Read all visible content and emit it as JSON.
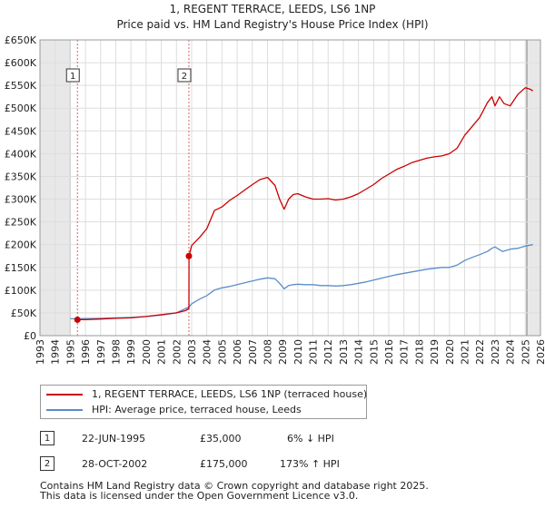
{
  "title_line1": "1, REGENT TERRACE, LEEDS, LS6 1NP",
  "title_line2": "Price paid vs. HM Land Registry's House Price Index (HPI)",
  "chart_data": {
    "type": "line",
    "title": "1, REGENT TERRACE, LEEDS, LS6 1NP — Price paid vs. HM Land Registry's House Price Index (HPI)",
    "xlabel": "",
    "ylabel": "",
    "xlim": [
      1993,
      2026
    ],
    "ylim": [
      0,
      650000
    ],
    "x_ticks": [
      1993,
      1994,
      1995,
      1996,
      1997,
      1998,
      1999,
      2000,
      2001,
      2002,
      2003,
      2004,
      2005,
      2006,
      2007,
      2008,
      2009,
      2010,
      2011,
      2012,
      2013,
      2014,
      2015,
      2016,
      2017,
      2018,
      2019,
      2020,
      2021,
      2022,
      2023,
      2024,
      2025,
      2026
    ],
    "y_ticks": [
      0,
      50000,
      100000,
      150000,
      200000,
      250000,
      300000,
      350000,
      400000,
      450000,
      500000,
      550000,
      600000,
      650000
    ],
    "y_tick_labels": [
      "£0",
      "£50K",
      "£100K",
      "£150K",
      "£200K",
      "£250K",
      "£300K",
      "£350K",
      "£400K",
      "£450K",
      "£500K",
      "£550K",
      "£600K",
      "£650K"
    ],
    "grid": true,
    "shaded_ranges": [
      [
        1993,
        1995.0
      ],
      [
        2025.1,
        2026
      ]
    ],
    "series": [
      {
        "name": "1, REGENT TERRACE, LEEDS, LS6 1NP (terraced house)",
        "color": "#cc0000",
        "x": [
          1995.47,
          1996,
          1997,
          1998,
          1999,
          2000,
          2001,
          2002,
          2002.6,
          2002.82,
          2002.83,
          2003,
          2003.5,
          2004,
          2004.5,
          2005,
          2005.5,
          2006,
          2006.5,
          2007,
          2007.5,
          2008,
          2008.5,
          2008.8,
          2009.1,
          2009.4,
          2009.7,
          2010,
          2010.5,
          2011,
          2011.5,
          2012,
          2012.5,
          2013,
          2013.5,
          2014,
          2014.5,
          2015,
          2015.5,
          2016,
          2016.5,
          2017,
          2017.5,
          2018,
          2018.5,
          2019,
          2019.5,
          2020,
          2020.5,
          2021,
          2021.5,
          2022,
          2022.5,
          2022.8,
          2023,
          2023.3,
          2023.6,
          2024,
          2024.5,
          2025,
          2025.3,
          2025.5
        ],
        "values": [
          35000,
          35000,
          36500,
          38000,
          39000,
          42000,
          46000,
          50000,
          55000,
          60000,
          175000,
          198000,
          215000,
          235000,
          275000,
          283000,
          297000,
          308000,
          320000,
          332000,
          343000,
          348000,
          330000,
          300000,
          278000,
          300000,
          310000,
          312000,
          305000,
          300000,
          300000,
          301000,
          298000,
          300000,
          305000,
          312000,
          322000,
          332000,
          345000,
          355000,
          365000,
          372000,
          380000,
          385000,
          390000,
          393000,
          395000,
          400000,
          412000,
          440000,
          460000,
          480000,
          512000,
          525000,
          505000,
          525000,
          510000,
          505000,
          530000,
          545000,
          542000,
          538000
        ]
      },
      {
        "name": "HPI: Average price, terraced house, Leeds",
        "color": "#5b8dc9",
        "x": [
          1995,
          1996,
          1997,
          1998,
          1999,
          2000,
          2001,
          2002,
          2002.83,
          2003,
          2003.5,
          2004,
          2004.5,
          2005,
          2005.5,
          2006,
          2006.5,
          2007,
          2007.5,
          2008,
          2008.5,
          2008.8,
          2009.1,
          2009.4,
          2009.7,
          2010,
          2010.5,
          2011,
          2011.5,
          2012,
          2012.5,
          2013,
          2013.5,
          2014,
          2014.5,
          2015,
          2015.5,
          2016,
          2016.5,
          2017,
          2017.5,
          2018,
          2018.5,
          2019,
          2019.5,
          2020,
          2020.5,
          2021,
          2021.5,
          2022,
          2022.5,
          2022.8,
          2023,
          2023.5,
          2024,
          2024.5,
          2025,
          2025.5
        ],
        "values": [
          37000,
          37500,
          38000,
          39000,
          40000,
          42000,
          45000,
          50000,
          63000,
          70000,
          80000,
          88000,
          100000,
          105000,
          108000,
          112000,
          116000,
          120000,
          124000,
          127000,
          125000,
          115000,
          103000,
          110000,
          112000,
          113000,
          112000,
          112000,
          110000,
          110000,
          109000,
          110000,
          112000,
          115000,
          118000,
          122000,
          126000,
          130000,
          134000,
          137000,
          140000,
          143000,
          146000,
          148000,
          150000,
          150000,
          155000,
          165000,
          172000,
          178000,
          185000,
          192000,
          195000,
          185000,
          190000,
          192000,
          197000,
          200000
        ]
      }
    ],
    "annotations": [
      {
        "label": "1",
        "x": 1995.47,
        "value": 35000
      },
      {
        "label": "2",
        "x": 2002.82,
        "value": 175000
      }
    ],
    "legend_position": "bottom-left, below chart"
  },
  "legend": {
    "item1": "1, REGENT TERRACE, LEEDS, LS6 1NP (terraced house)",
    "item2": "HPI: Average price, terraced house, Leeds"
  },
  "transactions": [
    {
      "num": "1",
      "date": "22-JUN-1995",
      "price": "£35,000",
      "hpi": "6% ↓ HPI"
    },
    {
      "num": "2",
      "date": "28-OCT-2002",
      "price": "£175,000",
      "hpi": "173% ↑ HPI"
    }
  ],
  "footer_line1": "Contains HM Land Registry data © Crown copyright and database right 2025.",
  "footer_line2": "This data is licensed under the Open Government Licence v3.0."
}
